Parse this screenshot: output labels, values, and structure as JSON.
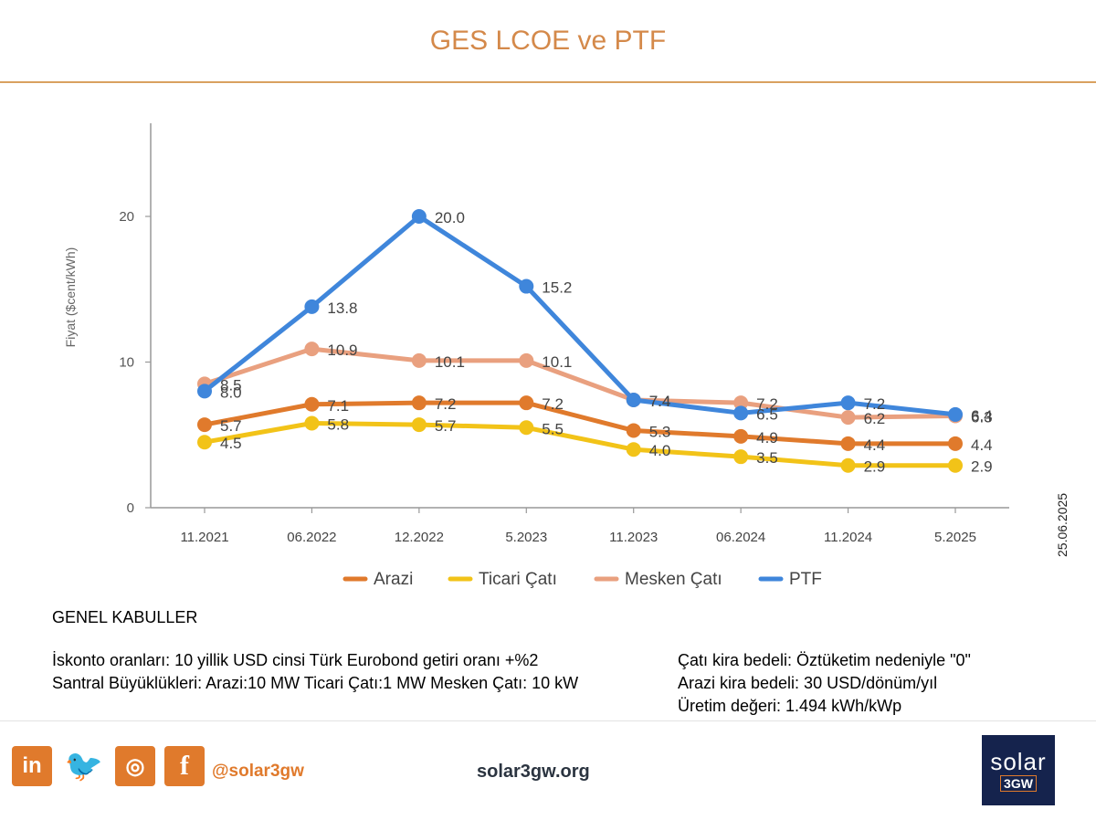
{
  "page": {
    "title": "GES LCOE ve PTF",
    "date": "25.06.2025"
  },
  "notes": {
    "heading": "GENEL KABULLER",
    "left": [
      "İskonto oranları: 10 yillik USD cinsi Türk Eurobond getiri oranı +%2",
      "Santral Büyüklükleri: Arazi:10 MW Ticari Çatı:1 MW Mesken Çatı: 10 kW"
    ],
    "right": [
      "Çatı kira bedeli: Öztüketim nedeniyle \"0\"",
      "Arazi kira bedeli: 30 USD/dönüm/yıl",
      "Üretim değeri: 1.494 kWh/kWp"
    ]
  },
  "footer": {
    "social": [
      {
        "label": "in",
        "icon": "linkedin-icon"
      },
      {
        "label": "🐦",
        "icon": "twitter-icon"
      },
      {
        "label": "◎",
        "icon": "instagram-icon"
      },
      {
        "label": "f",
        "icon": "facebook-icon"
      }
    ],
    "handle": "@solar3gw",
    "website": "solar3gw.org",
    "logo_top": "solar",
    "logo_bottom": "3GW"
  },
  "chart_data": {
    "type": "line",
    "ylabel": "Fiyat ($cent/kWh)",
    "xlabel": "",
    "ylim": [
      0,
      27
    ],
    "yticks": [
      0,
      10,
      20
    ],
    "categories": [
      "11.2021",
      "06.2022",
      "12.2022",
      "5.2023",
      "11.2023",
      "06.2024",
      "11.2024",
      "5.2025"
    ],
    "legend_position": "bottom",
    "series": [
      {
        "name": "Arazi",
        "color": "#e07a2c",
        "values": [
          5.7,
          7.1,
          7.2,
          7.2,
          5.3,
          4.9,
          4.4,
          4.4
        ]
      },
      {
        "name": "Ticari Çatı",
        "color": "#f2c318",
        "values": [
          4.5,
          5.8,
          5.7,
          5.5,
          4.0,
          3.5,
          2.9,
          2.9
        ]
      },
      {
        "name": "Mesken Çatı",
        "color": "#e9a07f",
        "values": [
          8.5,
          10.9,
          10.1,
          10.1,
          7.4,
          7.2,
          6.2,
          6.3
        ]
      },
      {
        "name": "PTF",
        "color": "#3f86db",
        "values": [
          8.0,
          13.8,
          20.0,
          15.2,
          7.4,
          6.5,
          7.2,
          6.4
        ]
      }
    ]
  }
}
